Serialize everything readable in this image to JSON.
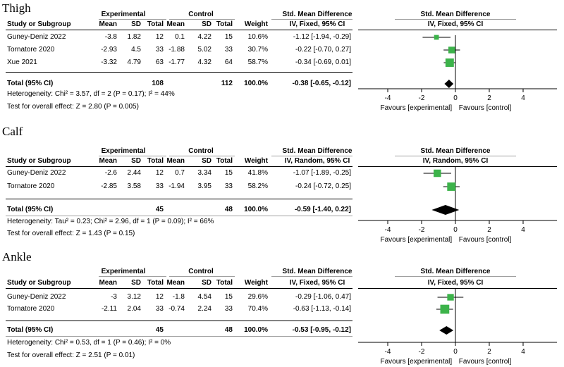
{
  "column_headers": {
    "group_experimental": "Experimental",
    "group_control": "Control",
    "study": "Study or Subgroup",
    "mean": "Mean",
    "sd": "SD",
    "total": "Total",
    "weight": "Weight",
    "effect_title": "Std. Mean Difference",
    "plot_title": "Std. Mean Difference"
  },
  "favours": {
    "left": "Favours [experimental]",
    "right": "Favours [control]"
  },
  "chart_data": [
    {
      "type": "forest",
      "section": "Thigh",
      "method": "IV, Fixed, 95% CI",
      "xlim": [
        -4,
        4
      ],
      "ticks": [
        "-4",
        "-2",
        "0",
        "2",
        "4"
      ],
      "studies": [
        {
          "name": "Guney-Deniz 2022",
          "exp_mean": "-3.8",
          "exp_sd": "1.82",
          "exp_total": "12",
          "ctl_mean": "0.1",
          "ctl_sd": "4.22",
          "ctl_total": "15",
          "weight": "10.6%",
          "ci_text": "-1.12 [-1.94, -0.29]",
          "smd": -1.12,
          "lo": -1.94,
          "hi": -0.29,
          "w": 10.6
        },
        {
          "name": "Tornatore 2020",
          "exp_mean": "-2.93",
          "exp_sd": "4.5",
          "exp_total": "33",
          "ctl_mean": "-1.88",
          "ctl_sd": "5.02",
          "ctl_total": "33",
          "weight": "30.7%",
          "ci_text": "-0.22 [-0.70, 0.27]",
          "smd": -0.22,
          "lo": -0.7,
          "hi": 0.27,
          "w": 30.7
        },
        {
          "name": "Xue 2021",
          "exp_mean": "-3.32",
          "exp_sd": "4.79",
          "exp_total": "63",
          "ctl_mean": "-1.77",
          "ctl_sd": "4.32",
          "ctl_total": "64",
          "weight": "58.7%",
          "ci_text": "-0.34 [-0.69, 0.01]",
          "smd": -0.34,
          "lo": -0.69,
          "hi": 0.01,
          "w": 58.7
        }
      ],
      "total": {
        "label": "Total (95% CI)",
        "exp_total": "108",
        "ctl_total": "112",
        "weight": "100.0%",
        "ci_text": "-0.38 [-0.65, -0.12]",
        "smd": -0.38,
        "lo": -0.65,
        "hi": -0.12
      },
      "heterogeneity": "Heterogeneity: Chi² = 3.57, df = 2 (P = 0.17); I² = 44%",
      "overall": "Test for overall effect: Z = 2.80 (P = 0.005)"
    },
    {
      "type": "forest",
      "section": "Calf",
      "method": "IV, Random, 95% CI",
      "xlim": [
        -4,
        4
      ],
      "ticks": [
        "-4",
        "-2",
        "0",
        "2",
        "4"
      ],
      "studies": [
        {
          "name": "Guney-Deniz 2022",
          "exp_mean": "-2.6",
          "exp_sd": "2.44",
          "exp_total": "12",
          "ctl_mean": "0.7",
          "ctl_sd": "3.34",
          "ctl_total": "15",
          "weight": "41.8%",
          "ci_text": "-1.07 [-1.89, -0.25]",
          "smd": -1.07,
          "lo": -1.89,
          "hi": -0.25,
          "w": 41.8
        },
        {
          "name": "Tornatore 2020",
          "exp_mean": "-2.85",
          "exp_sd": "3.58",
          "exp_total": "33",
          "ctl_mean": "-1.94",
          "ctl_sd": "3.95",
          "ctl_total": "33",
          "weight": "58.2%",
          "ci_text": "-0.24 [-0.72, 0.25]",
          "smd": -0.24,
          "lo": -0.72,
          "hi": 0.25,
          "w": 58.2
        }
      ],
      "total": {
        "label": "Total (95% CI)",
        "exp_total": "45",
        "ctl_total": "48",
        "weight": "100.0%",
        "ci_text": "-0.59 [-1.40, 0.22]",
        "smd": -0.59,
        "lo": -1.4,
        "hi": 0.22
      },
      "heterogeneity": "Heterogeneity: Tau² = 0.23; Chi² = 2.96, df = 1 (P = 0.09); I² = 66%",
      "overall": "Test for overall effect: Z = 1.43 (P = 0.15)"
    },
    {
      "type": "forest",
      "section": "Ankle",
      "method": "IV, Fixed, 95% CI",
      "xlim": [
        -4,
        4
      ],
      "ticks": [
        "-4",
        "-2",
        "0",
        "2",
        "4"
      ],
      "studies": [
        {
          "name": "Guney-Deniz 2022",
          "exp_mean": "-3",
          "exp_sd": "3.12",
          "exp_total": "12",
          "ctl_mean": "-1.8",
          "ctl_sd": "4.54",
          "ctl_total": "15",
          "weight": "29.6%",
          "ci_text": "-0.29 [-1.06, 0.47]",
          "smd": -0.29,
          "lo": -1.06,
          "hi": 0.47,
          "w": 29.6
        },
        {
          "name": "Tornatore 2020",
          "exp_mean": "-2.11",
          "exp_sd": "2.04",
          "exp_total": "33",
          "ctl_mean": "-0.74",
          "ctl_sd": "2.24",
          "ctl_total": "33",
          "weight": "70.4%",
          "ci_text": "-0.63 [-1.13, -0.14]",
          "smd": -0.63,
          "lo": -1.13,
          "hi": -0.14,
          "w": 70.4
        }
      ],
      "total": {
        "label": "Total (95% CI)",
        "exp_total": "45",
        "ctl_total": "48",
        "weight": "100.0%",
        "ci_text": "-0.53 [-0.95, -0.12]",
        "smd": -0.53,
        "lo": -0.95,
        "hi": -0.12
      },
      "heterogeneity": "Heterogeneity: Chi² = 0.53, df = 1 (P = 0.46); I² = 0%",
      "overall": "Test for overall effect: Z = 2.51 (P = 0.01)"
    }
  ],
  "colors": {
    "study_marker": "#3cb34a",
    "diamond": "#000000",
    "axis": "#000000",
    "rule": "#000000"
  }
}
